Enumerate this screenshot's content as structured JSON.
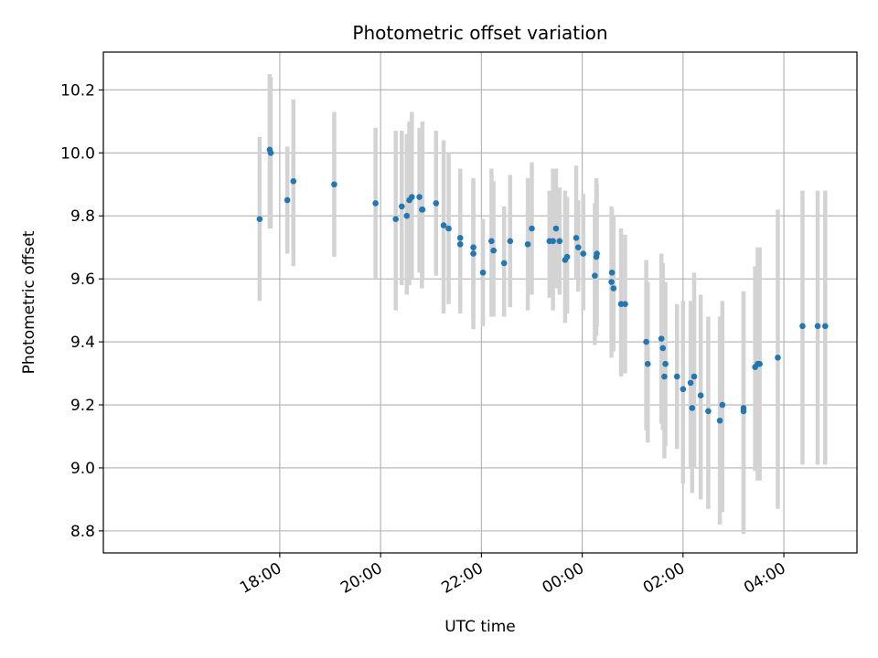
{
  "chart_data": {
    "type": "scatter",
    "title": "Photometric offset variation",
    "xlabel": "UTC time",
    "ylabel": "Photometric offset",
    "x_unit": "hours since 00:00 UTC (negative = previous evening)",
    "xlim": [
      -9.5,
      5.45
    ],
    "ylim": [
      8.73,
      10.32
    ],
    "x_ticks": [
      {
        "value": -6,
        "label": "18:00"
      },
      {
        "value": -4,
        "label": "20:00"
      },
      {
        "value": -2,
        "label": "22:00"
      },
      {
        "value": 0,
        "label": "00:00"
      },
      {
        "value": 2,
        "label": "02:00"
      },
      {
        "value": 4,
        "label": "04:00"
      }
    ],
    "y_ticks": [
      {
        "value": 8.8,
        "label": "8.8"
      },
      {
        "value": 9.0,
        "label": "9.0"
      },
      {
        "value": 9.2,
        "label": "9.2"
      },
      {
        "value": 9.4,
        "label": "9.4"
      },
      {
        "value": 9.6,
        "label": "9.6"
      },
      {
        "value": 9.8,
        "label": "9.8"
      },
      {
        "value": 10.0,
        "label": "10.0"
      },
      {
        "value": 10.2,
        "label": "10.2"
      }
    ],
    "grid": true,
    "colors": {
      "point": "#1f77b4",
      "errorbar": "#d3d3d3",
      "grid": "#b0b0b0"
    },
    "points": [
      {
        "x": -6.4,
        "y": 9.79,
        "ylo": 9.53,
        "yhi": 10.05
      },
      {
        "x": -6.2,
        "y": 10.01,
        "ylo": 9.76,
        "yhi": 10.25
      },
      {
        "x": -6.18,
        "y": 10.0,
        "ylo": 9.76,
        "yhi": 10.24
      },
      {
        "x": -5.85,
        "y": 9.85,
        "ylo": 9.68,
        "yhi": 10.02
      },
      {
        "x": -5.73,
        "y": 9.91,
        "ylo": 9.64,
        "yhi": 10.17
      },
      {
        "x": -4.92,
        "y": 9.9,
        "ylo": 9.67,
        "yhi": 10.13
      },
      {
        "x": -4.1,
        "y": 9.84,
        "ylo": 9.6,
        "yhi": 10.08
      },
      {
        "x": -3.7,
        "y": 9.79,
        "ylo": 9.5,
        "yhi": 10.07
      },
      {
        "x": -3.58,
        "y": 9.83,
        "ylo": 9.58,
        "yhi": 10.07
      },
      {
        "x": -3.48,
        "y": 9.8,
        "ylo": 9.55,
        "yhi": 10.06
      },
      {
        "x": -3.43,
        "y": 9.85,
        "ylo": 9.58,
        "yhi": 10.1
      },
      {
        "x": -3.38,
        "y": 9.86,
        "ylo": 9.6,
        "yhi": 10.13
      },
      {
        "x": -3.23,
        "y": 9.86,
        "ylo": 9.62,
        "yhi": 10.08
      },
      {
        "x": -3.18,
        "y": 9.82,
        "ylo": 9.57,
        "yhi": 10.07
      },
      {
        "x": -3.17,
        "y": 9.82,
        "ylo": 9.6,
        "yhi": 10.1
      },
      {
        "x": -2.9,
        "y": 9.84,
        "ylo": 9.61,
        "yhi": 10.07
      },
      {
        "x": -2.75,
        "y": 9.77,
        "ylo": 9.49,
        "yhi": 10.04
      },
      {
        "x": -2.65,
        "y": 9.76,
        "ylo": 9.52,
        "yhi": 10.0
      },
      {
        "x": -2.42,
        "y": 9.73,
        "ylo": 9.53,
        "yhi": 9.95
      },
      {
        "x": -2.42,
        "y": 9.71,
        "ylo": 9.49,
        "yhi": 9.93
      },
      {
        "x": -2.16,
        "y": 9.7,
        "ylo": 9.48,
        "yhi": 9.92
      },
      {
        "x": -2.16,
        "y": 9.68,
        "ylo": 9.44,
        "yhi": 9.91
      },
      {
        "x": -1.97,
        "y": 9.62,
        "ylo": 9.45,
        "yhi": 9.79
      },
      {
        "x": -1.8,
        "y": 9.72,
        "ylo": 9.48,
        "yhi": 9.95
      },
      {
        "x": -1.76,
        "y": 9.69,
        "ylo": 9.48,
        "yhi": 9.91
      },
      {
        "x": -1.55,
        "y": 9.65,
        "ylo": 9.48,
        "yhi": 9.83
      },
      {
        "x": -1.43,
        "y": 9.72,
        "ylo": 9.51,
        "yhi": 9.93
      },
      {
        "x": -1.08,
        "y": 9.71,
        "ylo": 9.5,
        "yhi": 9.92
      },
      {
        "x": -1.0,
        "y": 9.76,
        "ylo": 9.55,
        "yhi": 9.97
      },
      {
        "x": -0.65,
        "y": 9.72,
        "ylo": 9.54,
        "yhi": 9.88
      },
      {
        "x": -0.58,
        "y": 9.72,
        "ylo": 9.5,
        "yhi": 9.95
      },
      {
        "x": -0.52,
        "y": 9.76,
        "ylo": 9.57,
        "yhi": 9.95
      },
      {
        "x": -0.45,
        "y": 9.72,
        "ylo": 9.55,
        "yhi": 9.89
      },
      {
        "x": -0.34,
        "y": 9.66,
        "ylo": 9.46,
        "yhi": 9.88
      },
      {
        "x": -0.3,
        "y": 9.67,
        "ylo": 9.49,
        "yhi": 9.86
      },
      {
        "x": -0.12,
        "y": 9.73,
        "ylo": 9.6,
        "yhi": 9.96
      },
      {
        "x": -0.08,
        "y": 9.7,
        "ylo": 9.56,
        "yhi": 9.85
      },
      {
        "x": 0.02,
        "y": 9.68,
        "ylo": 9.5,
        "yhi": 9.87
      },
      {
        "x": 0.25,
        "y": 9.61,
        "ylo": 9.39,
        "yhi": 9.84
      },
      {
        "x": 0.28,
        "y": 9.67,
        "ylo": 9.42,
        "yhi": 9.92
      },
      {
        "x": 0.29,
        "y": 9.68,
        "ylo": 9.45,
        "yhi": 9.9
      },
      {
        "x": 0.58,
        "y": 9.59,
        "ylo": 9.35,
        "yhi": 9.83
      },
      {
        "x": 0.59,
        "y": 9.62,
        "ylo": 9.4,
        "yhi": 9.82
      },
      {
        "x": 0.62,
        "y": 9.57,
        "ylo": 9.37,
        "yhi": 9.8
      },
      {
        "x": 0.77,
        "y": 9.52,
        "ylo": 9.29,
        "yhi": 9.76
      },
      {
        "x": 0.85,
        "y": 9.52,
        "ylo": 9.3,
        "yhi": 9.74
      },
      {
        "x": 1.27,
        "y": 9.4,
        "ylo": 9.12,
        "yhi": 9.66
      },
      {
        "x": 1.3,
        "y": 9.33,
        "ylo": 9.08,
        "yhi": 9.59
      },
      {
        "x": 1.57,
        "y": 9.41,
        "ylo": 9.14,
        "yhi": 9.68
      },
      {
        "x": 1.6,
        "y": 9.38,
        "ylo": 9.12,
        "yhi": 9.65
      },
      {
        "x": 1.63,
        "y": 9.29,
        "ylo": 9.03,
        "yhi": 9.53
      },
      {
        "x": 1.65,
        "y": 9.33,
        "ylo": 9.07,
        "yhi": 9.59
      },
      {
        "x": 1.88,
        "y": 9.29,
        "ylo": 9.06,
        "yhi": 9.52
      },
      {
        "x": 2.0,
        "y": 9.25,
        "ylo": 8.95,
        "yhi": 9.53
      },
      {
        "x": 2.15,
        "y": 9.27,
        "ylo": 9.0,
        "yhi": 9.53
      },
      {
        "x": 2.18,
        "y": 9.19,
        "ylo": 8.92,
        "yhi": 9.45
      },
      {
        "x": 2.22,
        "y": 9.29,
        "ylo": 9.0,
        "yhi": 9.62
      },
      {
        "x": 2.35,
        "y": 9.23,
        "ylo": 8.9,
        "yhi": 9.55
      },
      {
        "x": 2.5,
        "y": 9.18,
        "ylo": 8.87,
        "yhi": 9.48
      },
      {
        "x": 2.73,
        "y": 9.15,
        "ylo": 8.82,
        "yhi": 9.48
      },
      {
        "x": 2.78,
        "y": 9.2,
        "ylo": 8.86,
        "yhi": 9.53
      },
      {
        "x": 3.2,
        "y": 9.19,
        "ylo": 8.8,
        "yhi": 9.56
      },
      {
        "x": 3.2,
        "y": 9.18,
        "ylo": 8.79,
        "yhi": 9.56
      },
      {
        "x": 3.43,
        "y": 9.32,
        "ylo": 8.99,
        "yhi": 9.64
      },
      {
        "x": 3.48,
        "y": 9.33,
        "ylo": 8.96,
        "yhi": 9.7
      },
      {
        "x": 3.52,
        "y": 9.33,
        "ylo": 8.96,
        "yhi": 9.7
      },
      {
        "x": 3.88,
        "y": 9.35,
        "ylo": 8.87,
        "yhi": 9.82
      },
      {
        "x": 4.37,
        "y": 9.45,
        "ylo": 9.01,
        "yhi": 9.88
      },
      {
        "x": 4.67,
        "y": 9.45,
        "ylo": 9.01,
        "yhi": 9.88
      },
      {
        "x": 4.82,
        "y": 9.45,
        "ylo": 9.01,
        "yhi": 9.88
      }
    ]
  }
}
